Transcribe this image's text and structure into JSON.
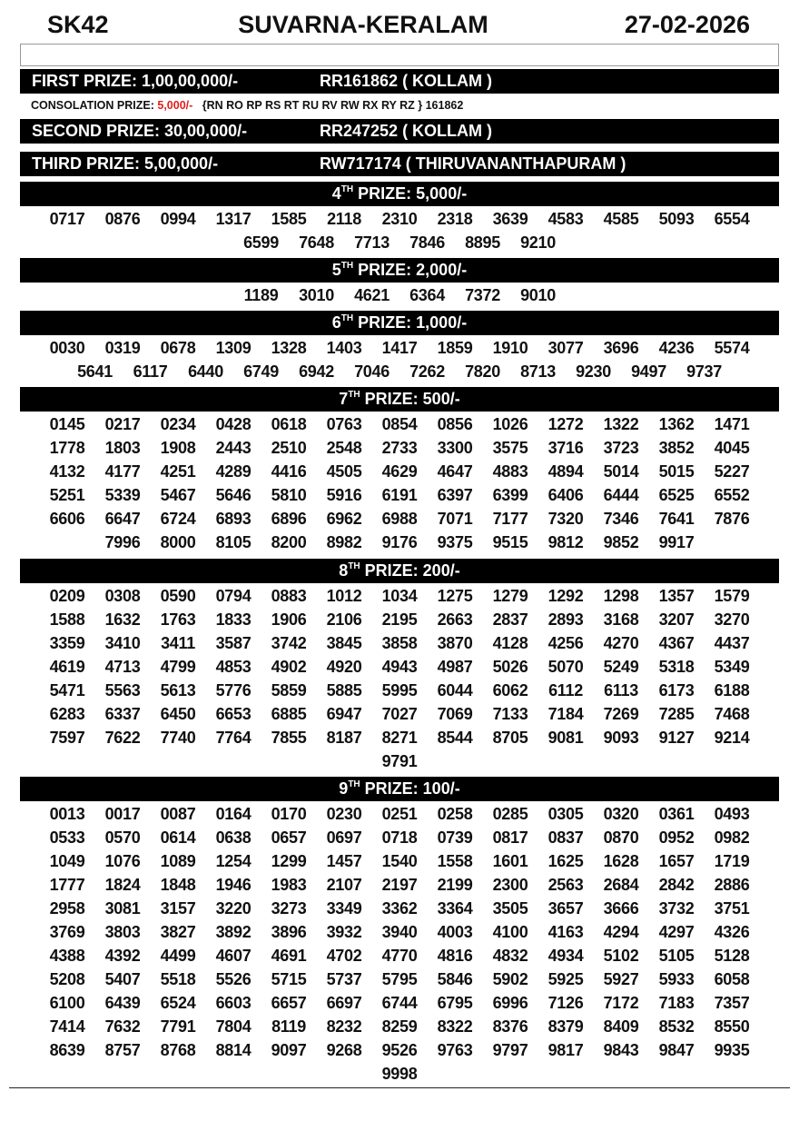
{
  "header": {
    "code": "SK42",
    "title": "SUVARNA-KERALAM",
    "date": "27-02-2026"
  },
  "first_prize": {
    "label": "FIRST PRIZE: 1,00,00,000/-",
    "ticket": "RR161862 ( KOLLAM )"
  },
  "consolation": {
    "label": "CONSOLATION PRIZE:",
    "amount": "5,000/-",
    "series": "{RN RO RP RS RT RU RV RW RX RY RZ } 161862"
  },
  "second_prize": {
    "label": "SECOND PRIZE: 30,00,000/-",
    "ticket": "RR247252 ( KOLLAM )"
  },
  "third_prize": {
    "label": "THIRD PRIZE: 5,00,000/-",
    "ticket": "RW717174 ( THIRUVANANTHAPURAM )"
  },
  "colors": {
    "bar": "#000000",
    "consolation_amount": "#e0201b"
  },
  "prizes": [
    {
      "ordinal": "4",
      "suffix": "TH",
      "label": "PRIZE: 5,000/-",
      "numbers": [
        "0717",
        "0876",
        "0994",
        "1317",
        "1585",
        "2118",
        "2310",
        "2318",
        "3639",
        "4583",
        "4585",
        "5093",
        "6554",
        "6599",
        "7648",
        "7713",
        "7846",
        "8895",
        "9210"
      ]
    },
    {
      "ordinal": "5",
      "suffix": "TH",
      "label": "PRIZE: 2,000/-",
      "numbers": [
        "1189",
        "3010",
        "4621",
        "6364",
        "7372",
        "9010"
      ]
    },
    {
      "ordinal": "6",
      "suffix": "TH",
      "label": "PRIZE: 1,000/-",
      "numbers": [
        "0030",
        "0319",
        "0678",
        "1309",
        "1328",
        "1403",
        "1417",
        "1859",
        "1910",
        "3077",
        "3696",
        "4236",
        "5574",
        "5641",
        "6117",
        "6440",
        "6749",
        "6942",
        "7046",
        "7262",
        "7820",
        "8713",
        "9230",
        "9497",
        "9737"
      ]
    },
    {
      "ordinal": "7",
      "suffix": "TH",
      "label": "PRIZE: 500/-",
      "numbers": [
        "0145",
        "0217",
        "0234",
        "0428",
        "0618",
        "0763",
        "0854",
        "0856",
        "1026",
        "1272",
        "1322",
        "1362",
        "1471",
        "1778",
        "1803",
        "1908",
        "2443",
        "2510",
        "2548",
        "2733",
        "3300",
        "3575",
        "3716",
        "3723",
        "3852",
        "4045",
        "4132",
        "4177",
        "4251",
        "4289",
        "4416",
        "4505",
        "4629",
        "4647",
        "4883",
        "4894",
        "5014",
        "5015",
        "5227",
        "5251",
        "5339",
        "5467",
        "5646",
        "5810",
        "5916",
        "6191",
        "6397",
        "6399",
        "6406",
        "6444",
        "6525",
        "6552",
        "6606",
        "6647",
        "6724",
        "6893",
        "6896",
        "6962",
        "6988",
        "7071",
        "7177",
        "7320",
        "7346",
        "7641",
        "7876",
        "7996",
        "8000",
        "8105",
        "8200",
        "8982",
        "9176",
        "9375",
        "9515",
        "9812",
        "9852",
        "9917"
      ]
    },
    {
      "ordinal": "8",
      "suffix": "TH",
      "label": "PRIZE: 200/-",
      "numbers": [
        "0209",
        "0308",
        "0590",
        "0794",
        "0883",
        "1012",
        "1034",
        "1275",
        "1279",
        "1292",
        "1298",
        "1357",
        "1579",
        "1588",
        "1632",
        "1763",
        "1833",
        "1906",
        "2106",
        "2195",
        "2663",
        "2837",
        "2893",
        "3168",
        "3207",
        "3270",
        "3359",
        "3410",
        "3411",
        "3587",
        "3742",
        "3845",
        "3858",
        "3870",
        "4128",
        "4256",
        "4270",
        "4367",
        "4437",
        "4619",
        "4713",
        "4799",
        "4853",
        "4902",
        "4920",
        "4943",
        "4987",
        "5026",
        "5070",
        "5249",
        "5318",
        "5349",
        "5471",
        "5563",
        "5613",
        "5776",
        "5859",
        "5885",
        "5995",
        "6044",
        "6062",
        "6112",
        "6113",
        "6173",
        "6188",
        "6283",
        "6337",
        "6450",
        "6653",
        "6885",
        "6947",
        "7027",
        "7069",
        "7133",
        "7184",
        "7269",
        "7285",
        "7468",
        "7597",
        "7622",
        "7740",
        "7764",
        "7855",
        "8187",
        "8271",
        "8544",
        "8705",
        "9081",
        "9093",
        "9127",
        "9214",
        "9791"
      ]
    },
    {
      "ordinal": "9",
      "suffix": "TH",
      "label": "PRIZE: 100/-",
      "numbers": [
        "0013",
        "0017",
        "0087",
        "0164",
        "0170",
        "0230",
        "0251",
        "0258",
        "0285",
        "0305",
        "0320",
        "0361",
        "0493",
        "0533",
        "0570",
        "0614",
        "0638",
        "0657",
        "0697",
        "0718",
        "0739",
        "0817",
        "0837",
        "0870",
        "0952",
        "0982",
        "1049",
        "1076",
        "1089",
        "1254",
        "1299",
        "1457",
        "1540",
        "1558",
        "1601",
        "1625",
        "1628",
        "1657",
        "1719",
        "1777",
        "1824",
        "1848",
        "1946",
        "1983",
        "2107",
        "2197",
        "2199",
        "2300",
        "2563",
        "2684",
        "2842",
        "2886",
        "2958",
        "3081",
        "3157",
        "3220",
        "3273",
        "3349",
        "3362",
        "3364",
        "3505",
        "3657",
        "3666",
        "3732",
        "3751",
        "3769",
        "3803",
        "3827",
        "3892",
        "3896",
        "3932",
        "3940",
        "4003",
        "4100",
        "4163",
        "4294",
        "4297",
        "4326",
        "4388",
        "4392",
        "4499",
        "4607",
        "4691",
        "4702",
        "4770",
        "4816",
        "4832",
        "4934",
        "5102",
        "5105",
        "5128",
        "5208",
        "5407",
        "5518",
        "5526",
        "5715",
        "5737",
        "5795",
        "5846",
        "5902",
        "5925",
        "5927",
        "5933",
        "6058",
        "6100",
        "6439",
        "6524",
        "6603",
        "6657",
        "6697",
        "6744",
        "6795",
        "6996",
        "7126",
        "7172",
        "7183",
        "7357",
        "7414",
        "7632",
        "7791",
        "7804",
        "8119",
        "8232",
        "8259",
        "8322",
        "8376",
        "8379",
        "8409",
        "8532",
        "8550",
        "8639",
        "8757",
        "8768",
        "8814",
        "9097",
        "9268",
        "9526",
        "9763",
        "9797",
        "9817",
        "9843",
        "9847",
        "9935",
        "9998"
      ]
    }
  ]
}
